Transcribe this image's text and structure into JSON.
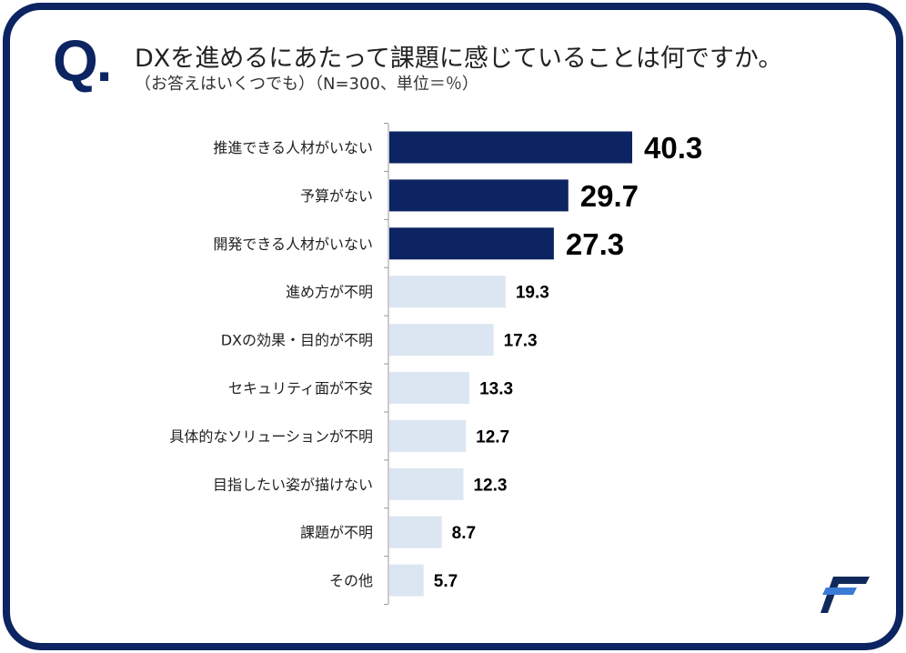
{
  "header": {
    "q_mark": "Q.",
    "title": "DXを進めるにあたって課題に感じていることは何ですか。",
    "subtitle": "（お答えはいくつでも）（N=300、単位＝％）"
  },
  "chart_data": {
    "type": "bar",
    "orientation": "horizontal",
    "title": "DXを進めるにあたって課題に感じていることは何ですか。",
    "categories": [
      "推進できる人材がいない",
      "予算がない",
      "開発できる人材がいない",
      "進め方が不明",
      "DXの効果・目的が不明",
      "セキュリティ面が不安",
      "具体的なソリューションが不明",
      "目指したい姿が描けない",
      "課題が不明",
      "その他"
    ],
    "values": [
      40.3,
      29.7,
      27.3,
      19.3,
      17.3,
      13.3,
      12.7,
      12.3,
      8.7,
      5.7
    ],
    "highlighted_top": 3,
    "xlim": [
      0,
      45
    ],
    "unit": "%",
    "grid": false,
    "colors": {
      "highlight": "#0c2461",
      "normal": "#dce6f2"
    }
  },
  "logo": {
    "name": "f-logo-icon",
    "colors": [
      "#0f2a5a",
      "#3a7bd5"
    ]
  }
}
